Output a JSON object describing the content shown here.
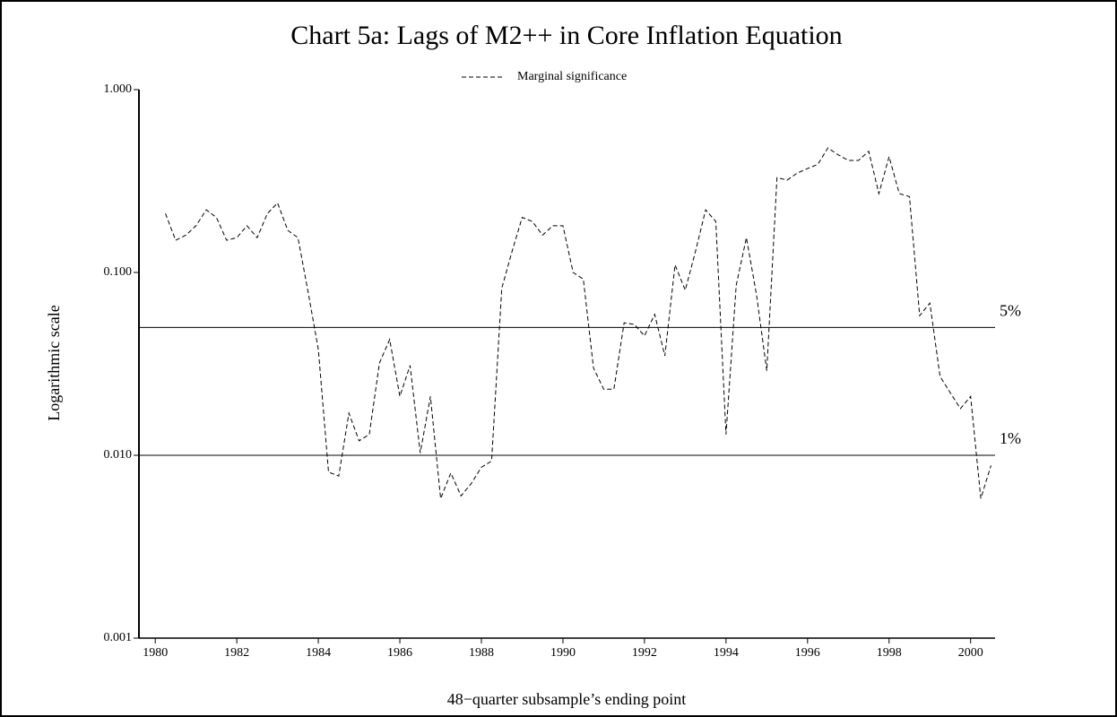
{
  "chart_data": {
    "type": "line",
    "title": "Chart 5a: Lags of M2++ in Core Inflation Equation",
    "xlabel": "48−quarter subsample’s ending point",
    "ylabel": "Logarithmic scale",
    "log_y": true,
    "x": [
      1980.25,
      1980.5,
      1980.75,
      1981,
      1981.25,
      1981.5,
      1981.75,
      1982,
      1982.25,
      1982.5,
      1982.75,
      1983,
      1983.25,
      1983.5,
      1983.75,
      1984,
      1984.25,
      1984.5,
      1984.75,
      1985,
      1985.25,
      1985.5,
      1985.75,
      1986,
      1986.25,
      1986.5,
      1986.75,
      1987,
      1987.25,
      1987.5,
      1987.75,
      1988,
      1988.25,
      1988.5,
      1988.75,
      1989,
      1989.25,
      1989.5,
      1989.75,
      1990,
      1990.25,
      1990.5,
      1990.75,
      1991,
      1991.25,
      1991.5,
      1991.75,
      1992,
      1992.25,
      1992.5,
      1992.75,
      1993,
      1993.25,
      1993.5,
      1993.75,
      1994,
      1994.25,
      1994.5,
      1994.75,
      1995,
      1995.25,
      1995.5,
      1995.75,
      1996,
      1996.25,
      1996.5,
      1996.75,
      1997,
      1997.25,
      1997.5,
      1997.75,
      1998,
      1998.25,
      1998.5,
      1998.75,
      1999,
      1999.25,
      1999.5,
      1999.75,
      2000,
      2000.25,
      2000.5
    ],
    "series": [
      {
        "name": "Marginal significance",
        "color": "#000000",
        "dash": true,
        "values": [
          0.21,
          0.15,
          0.16,
          0.18,
          0.22,
          0.2,
          0.15,
          0.155,
          0.18,
          0.155,
          0.21,
          0.24,
          0.17,
          0.155,
          0.078,
          0.038,
          0.0081,
          0.0077,
          0.017,
          0.012,
          0.013,
          0.032,
          0.043,
          0.021,
          0.031,
          0.0103,
          0.021,
          0.0058,
          0.008,
          0.006,
          0.007,
          0.0086,
          0.0093,
          0.082,
          0.13,
          0.2,
          0.19,
          0.16,
          0.18,
          0.18,
          0.1,
          0.092,
          0.03,
          0.023,
          0.023,
          0.053,
          0.052,
          0.045,
          0.059,
          0.035,
          0.11,
          0.08,
          0.13,
          0.22,
          0.19,
          0.013,
          0.085,
          0.155,
          0.075,
          0.029,
          0.33,
          0.32,
          0.35,
          0.37,
          0.39,
          0.48,
          0.44,
          0.41,
          0.41,
          0.46,
          0.27,
          0.43,
          0.27,
          0.26,
          0.058,
          0.068,
          0.027,
          0.022,
          0.018,
          0.021,
          0.0058,
          0.0088
        ]
      }
    ],
    "xlim": [
      1979.6,
      2000.6
    ],
    "xticks": [
      1980,
      1982,
      1984,
      1986,
      1988,
      1990,
      1992,
      1994,
      1996,
      1998,
      2000
    ],
    "ylim": [
      0.001,
      1
    ],
    "yticks": [
      {
        "value": 1,
        "label": "1.000"
      },
      {
        "value": 0.1,
        "label": "0.100"
      },
      {
        "value": 0.01,
        "label": "0.010"
      },
      {
        "value": 0.001,
        "label": "0.001"
      }
    ],
    "reference_lines": [
      {
        "value": 0.05,
        "label": "5%"
      },
      {
        "value": 0.01,
        "label": "1%"
      }
    ],
    "legend": "top"
  }
}
